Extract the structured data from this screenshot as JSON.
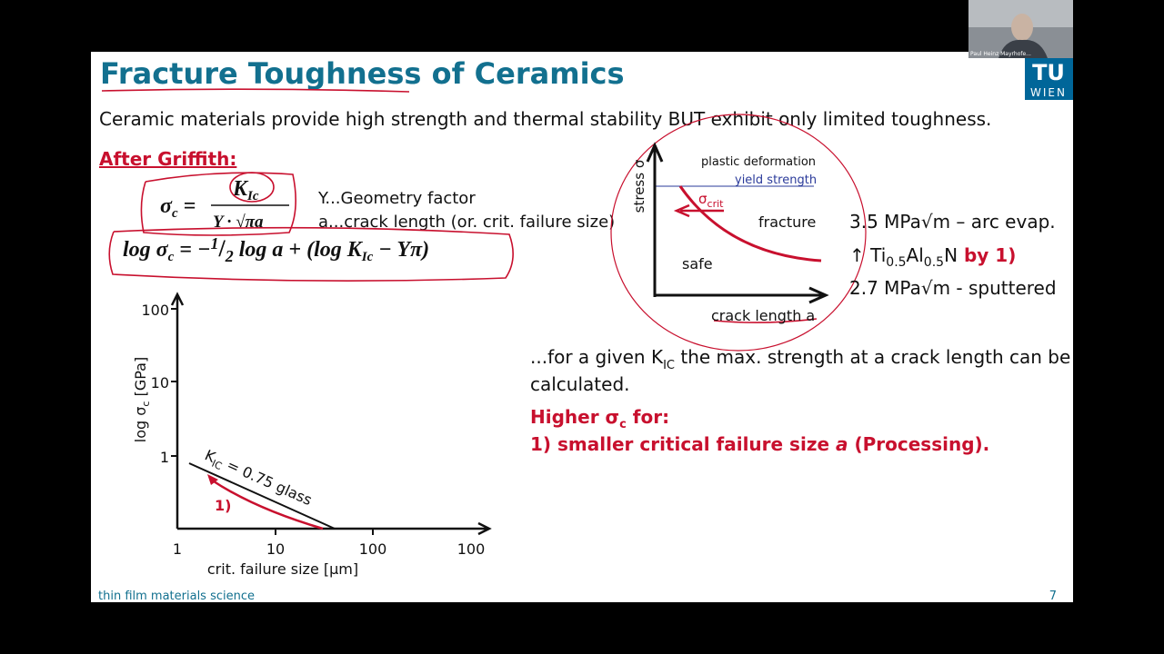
{
  "webcam": {
    "name": "Paul Heinz Mayrhofe..."
  },
  "logo": {
    "top": "TU",
    "bottom": "WIEN"
  },
  "slide": {
    "title": "Fracture Toughness of Ceramics",
    "intro": "Ceramic materials provide high strength and thermal stability BUT exhibit only limited toughness.",
    "griffith": {
      "heading": "After Griffith:",
      "formula1": [
        "σ",
        "c",
        " = ",
        "K",
        "Ic",
        "Y · √πa"
      ],
      "legend": [
        "Y...Geometry factor",
        "a...crack length (or. crit. failure size)"
      ],
      "formula2": [
        "log σ",
        "c",
        " = −",
        "1",
        "/",
        "2",
        " log a + (log K",
        "Ic",
        " − Yπ)"
      ]
    },
    "plot": {
      "y_label": [
        "log σ",
        "c",
        " [GPa]"
      ],
      "y_ticks": [
        "100",
        "10",
        "1"
      ],
      "x_ticks": [
        "1",
        "10",
        "100",
        "100"
      ],
      "x_label": "crit. failure size [µm]",
      "line_label": [
        "K",
        "IC",
        " = 0.75 glass"
      ],
      "annotation": "1)"
    },
    "inset": {
      "y_label": "stress σ",
      "region_top": "plastic deformation",
      "yield": "yield strength",
      "crit": [
        "σ",
        "crit"
      ],
      "fracture": "fracture",
      "safe": "safe",
      "x_label": "crack length a"
    },
    "results": {
      "arc": "3.5 MPa√m – arc evap.",
      "tialn": [
        "↑ Ti",
        "0.5",
        "Al",
        "0.5",
        "N",
        " by 1)"
      ],
      "sputter": "2.7 MPa√m - sputtered"
    },
    "text": {
      "given": [
        "...for a given K",
        "IC",
        " the max. strength at a crack length can be"
      ],
      "given2": "calculated.",
      "higher": [
        "Higher σ",
        "c",
        " for:"
      ],
      "point": [
        "1) smaller critical failure size ",
        "a",
        " (Processing)."
      ]
    },
    "footer": {
      "left": "thin film materials science",
      "page": "7"
    }
  }
}
